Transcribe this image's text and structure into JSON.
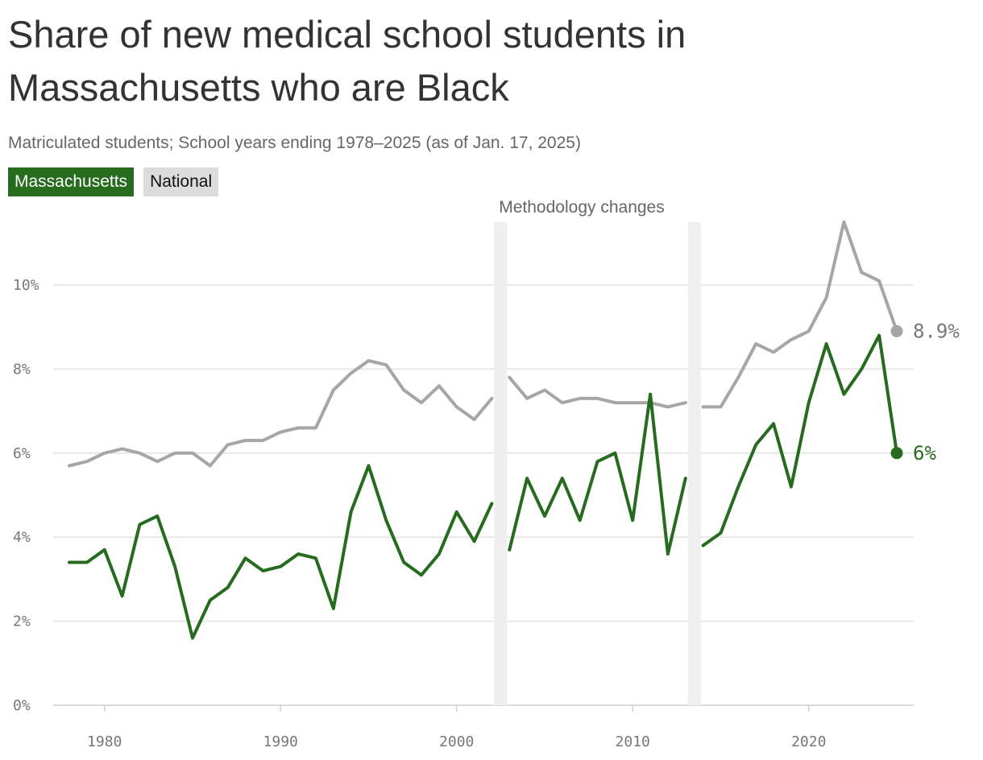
{
  "chart_data": {
    "type": "line",
    "title": "Share of new medical school students in Massachusetts who are Black",
    "subtitle": "Matriculated students; School years ending 1978–2025 (as of Jan. 17, 2025)",
    "x": [
      1978,
      1979,
      1980,
      1981,
      1982,
      1983,
      1984,
      1985,
      1986,
      1987,
      1988,
      1989,
      1990,
      1991,
      1992,
      1993,
      1994,
      1995,
      1996,
      1997,
      1998,
      1999,
      2000,
      2001,
      2002,
      2003,
      2004,
      2005,
      2006,
      2007,
      2008,
      2009,
      2010,
      2011,
      2012,
      2013,
      2014,
      2015,
      2016,
      2017,
      2018,
      2019,
      2020,
      2021,
      2022,
      2023,
      2024,
      2025
    ],
    "series": [
      {
        "name": "Massachusetts",
        "color": "#266b1e",
        "values": [
          3.4,
          3.4,
          3.7,
          2.6,
          4.3,
          4.5,
          3.3,
          1.6,
          2.5,
          2.8,
          3.5,
          3.2,
          3.3,
          3.6,
          3.5,
          2.3,
          4.6,
          5.7,
          4.4,
          3.4,
          3.1,
          3.6,
          4.6,
          3.9,
          4.8,
          3.7,
          5.4,
          4.5,
          5.4,
          4.4,
          5.8,
          6.0,
          4.4,
          7.4,
          3.6,
          5.4,
          3.8,
          4.1,
          5.2,
          6.2,
          6.7,
          5.2,
          7.2,
          8.6,
          7.4,
          8.0,
          8.8,
          6.0
        ],
        "end_label": "6%"
      },
      {
        "name": "National",
        "color": "#a6a6a6",
        "values": [
          5.7,
          5.8,
          6.0,
          6.1,
          6.0,
          5.8,
          6.0,
          6.0,
          5.7,
          6.2,
          6.3,
          6.3,
          6.5,
          6.6,
          6.6,
          7.5,
          7.9,
          8.2,
          8.1,
          7.5,
          7.2,
          7.6,
          7.1,
          6.8,
          7.3,
          7.8,
          7.3,
          7.5,
          7.2,
          7.3,
          7.3,
          7.2,
          7.2,
          7.2,
          7.1,
          7.2,
          7.1,
          7.1,
          7.8,
          8.6,
          8.4,
          8.7,
          8.9,
          9.7,
          11.5,
          10.3,
          10.1,
          8.9
        ],
        "end_label": "8.9%"
      }
    ],
    "segment_breaks": [
      2002.5,
      2013.5
    ],
    "methodology_label": "Methodology changes",
    "ylim": [
      0,
      11.5
    ],
    "y_ticks": [
      0,
      2,
      4,
      6,
      8,
      10
    ],
    "y_tick_labels": [
      "0%",
      "2%",
      "4%",
      "6%",
      "8%",
      "10%"
    ],
    "x_ticks": [
      1980,
      1990,
      2000,
      2010,
      2020
    ],
    "x_tick_labels": [
      "1980",
      "1990",
      "2000",
      "2010",
      "2020"
    ],
    "grid": true,
    "legend_placement": "top-left"
  }
}
